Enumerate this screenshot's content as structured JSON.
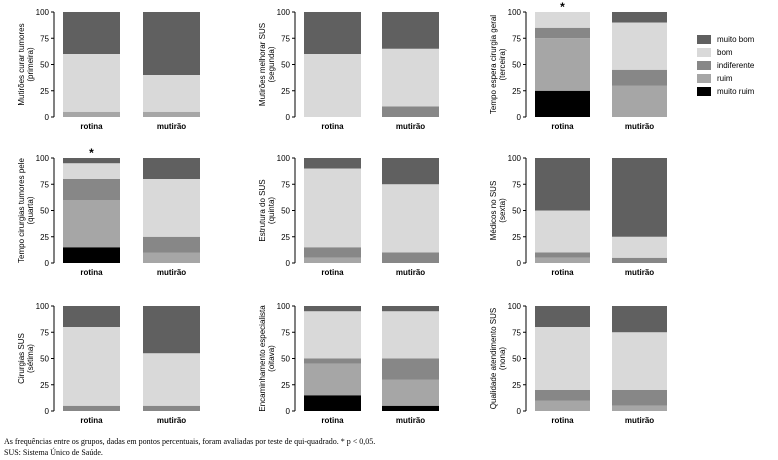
{
  "legend": [
    {
      "label": "muito bom",
      "color": "#606060"
    },
    {
      "label": "bom",
      "color": "#d9d9d9"
    },
    {
      "label": "indiferente",
      "color": "#878787"
    },
    {
      "label": "ruim",
      "color": "#a6a6a6"
    },
    {
      "label": "muito ruim",
      "color": "#000000"
    }
  ],
  "footnotes": {
    "line1": "As frequências entre os grupos, dadas em pontos percentuais, foram avaliadas por teste de qui-quadrado. * p < 0,05.",
    "line2": "SUS: Sistema Único de Saúde."
  },
  "chart_data": [
    {
      "type": "bar",
      "ylabel_lines": [
        "Mutirões curar tumores",
        "(primeira)"
      ],
      "categories": [
        "rotina",
        "mutirão"
      ],
      "yticks": [
        0,
        25,
        50,
        75,
        100
      ],
      "ylim": [
        0,
        100
      ],
      "significance": "",
      "series": [
        {
          "name": "muito ruim",
          "values": [
            0,
            0
          ]
        },
        {
          "name": "ruim",
          "values": [
            5,
            5
          ]
        },
        {
          "name": "indiferente",
          "values": [
            0,
            0
          ]
        },
        {
          "name": "bom",
          "values": [
            55,
            35
          ]
        },
        {
          "name": "muito bom",
          "values": [
            40,
            60
          ]
        }
      ]
    },
    {
      "type": "bar",
      "ylabel_lines": [
        "Mutirões melhorar SUS",
        "(segunda)"
      ],
      "categories": [
        "rotina",
        "mutirão"
      ],
      "yticks": [
        0,
        25,
        50,
        75,
        100
      ],
      "ylim": [
        0,
        100
      ],
      "significance": "",
      "series": [
        {
          "name": "muito ruim",
          "values": [
            0,
            0
          ]
        },
        {
          "name": "ruim",
          "values": [
            0,
            0
          ]
        },
        {
          "name": "indiferente",
          "values": [
            0,
            10
          ]
        },
        {
          "name": "bom",
          "values": [
            60,
            55
          ]
        },
        {
          "name": "muito bom",
          "values": [
            40,
            35
          ]
        }
      ]
    },
    {
      "type": "bar",
      "ylabel_lines": [
        "Tempo espera cirurgia geral",
        "(terceira)"
      ],
      "categories": [
        "rotina",
        "mutirão"
      ],
      "yticks": [
        0,
        25,
        50,
        75,
        100
      ],
      "ylim": [
        0,
        100
      ],
      "significance": "*",
      "series": [
        {
          "name": "muito ruim",
          "values": [
            25,
            0
          ]
        },
        {
          "name": "ruim",
          "values": [
            50,
            30
          ]
        },
        {
          "name": "indiferente",
          "values": [
            10,
            15
          ]
        },
        {
          "name": "bom",
          "values": [
            15,
            45
          ]
        },
        {
          "name": "muito bom",
          "values": [
            0,
            10
          ]
        }
      ]
    },
    {
      "type": "bar",
      "ylabel_lines": [
        "Tempo cirurgias tumores pele",
        "(quarta)"
      ],
      "categories": [
        "rotina",
        "mutirão"
      ],
      "yticks": [
        0,
        25,
        50,
        75,
        100
      ],
      "ylim": [
        0,
        100
      ],
      "significance": "*",
      "series": [
        {
          "name": "muito ruim",
          "values": [
            15,
            0
          ]
        },
        {
          "name": "ruim",
          "values": [
            45,
            10
          ]
        },
        {
          "name": "indiferente",
          "values": [
            20,
            15
          ]
        },
        {
          "name": "bom",
          "values": [
            15,
            55
          ]
        },
        {
          "name": "muito bom",
          "values": [
            5,
            20
          ]
        }
      ]
    },
    {
      "type": "bar",
      "ylabel_lines": [
        "Estrutura do SUS",
        "(quinta)"
      ],
      "categories": [
        "rotina",
        "mutirão"
      ],
      "yticks": [
        0,
        25,
        50,
        75,
        100
      ],
      "ylim": [
        0,
        100
      ],
      "significance": "",
      "series": [
        {
          "name": "muito ruim",
          "values": [
            0,
            0
          ]
        },
        {
          "name": "ruim",
          "values": [
            5,
            0
          ]
        },
        {
          "name": "indiferente",
          "values": [
            10,
            10
          ]
        },
        {
          "name": "bom",
          "values": [
            75,
            65
          ]
        },
        {
          "name": "muito bom",
          "values": [
            10,
            25
          ]
        }
      ]
    },
    {
      "type": "bar",
      "ylabel_lines": [
        "Médicos no SUS",
        "(sexta)"
      ],
      "categories": [
        "rotina",
        "mutirão"
      ],
      "yticks": [
        0,
        25,
        50,
        75,
        100
      ],
      "ylim": [
        0,
        100
      ],
      "significance": "",
      "series": [
        {
          "name": "muito ruim",
          "values": [
            0,
            0
          ]
        },
        {
          "name": "ruim",
          "values": [
            5,
            0
          ]
        },
        {
          "name": "indiferente",
          "values": [
            5,
            5
          ]
        },
        {
          "name": "bom",
          "values": [
            40,
            20
          ]
        },
        {
          "name": "muito bom",
          "values": [
            50,
            75
          ]
        }
      ]
    },
    {
      "type": "bar",
      "ylabel_lines": [
        "Cirurgias SUS",
        "(sétima)"
      ],
      "categories": [
        "rotina",
        "mutirão"
      ],
      "yticks": [
        0,
        25,
        50,
        75,
        100
      ],
      "ylim": [
        0,
        100
      ],
      "significance": "",
      "series": [
        {
          "name": "muito ruim",
          "values": [
            0,
            0
          ]
        },
        {
          "name": "ruim",
          "values": [
            0,
            0
          ]
        },
        {
          "name": "indiferente",
          "values": [
            5,
            5
          ]
        },
        {
          "name": "bom",
          "values": [
            75,
            50
          ]
        },
        {
          "name": "muito bom",
          "values": [
            20,
            45
          ]
        }
      ]
    },
    {
      "type": "bar",
      "ylabel_lines": [
        "Encaminhamento especialista",
        "(oitava)"
      ],
      "categories": [
        "rotina",
        "mutirão"
      ],
      "yticks": [
        0,
        25,
        50,
        75,
        100
      ],
      "ylim": [
        0,
        100
      ],
      "significance": "",
      "series": [
        {
          "name": "muito ruim",
          "values": [
            15,
            5
          ]
        },
        {
          "name": "ruim",
          "values": [
            30,
            25
          ]
        },
        {
          "name": "indiferente",
          "values": [
            5,
            20
          ]
        },
        {
          "name": "bom",
          "values": [
            45,
            45
          ]
        },
        {
          "name": "muito bom",
          "values": [
            5,
            5
          ]
        }
      ]
    },
    {
      "type": "bar",
      "ylabel_lines": [
        "Qualidade atendimento SUS",
        "(nona)"
      ],
      "categories": [
        "rotina",
        "mutirão"
      ],
      "yticks": [
        0,
        25,
        50,
        75,
        100
      ],
      "ylim": [
        0,
        100
      ],
      "significance": "",
      "series": [
        {
          "name": "muito ruim",
          "values": [
            0,
            0
          ]
        },
        {
          "name": "ruim",
          "values": [
            10,
            5
          ]
        },
        {
          "name": "indiferente",
          "values": [
            10,
            15
          ]
        },
        {
          "name": "bom",
          "values": [
            60,
            55
          ]
        },
        {
          "name": "muito bom",
          "values": [
            20,
            25
          ]
        }
      ]
    }
  ]
}
